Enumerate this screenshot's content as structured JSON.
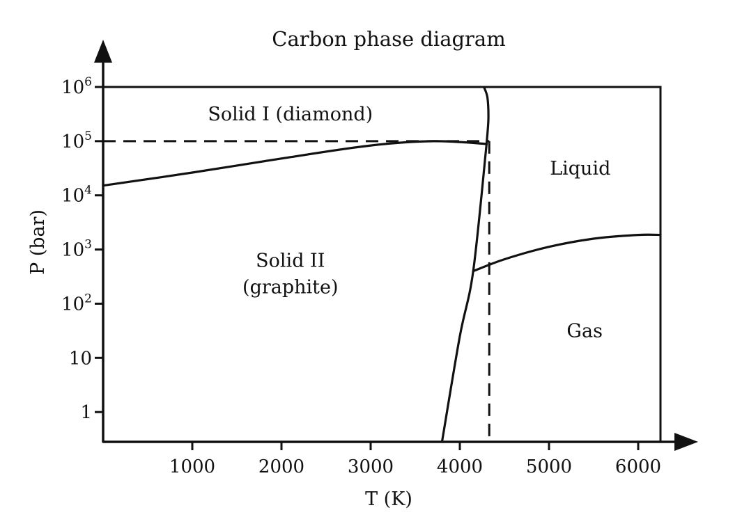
{
  "chart_data": {
    "type": "line",
    "title": "Carbon phase diagram",
    "xlabel": "T (K)",
    "ylabel": "P (bar)",
    "x_ticks": [
      1000,
      2000,
      3000,
      4000,
      5000,
      6000
    ],
    "y_ticks": [
      {
        "exp": 0,
        "base": "1",
        "sup": ""
      },
      {
        "exp": 1,
        "base": "10",
        "sup": ""
      },
      {
        "exp": 2,
        "base": "10",
        "sup": "2"
      },
      {
        "exp": 3,
        "base": "10",
        "sup": "3"
      },
      {
        "exp": 4,
        "base": "10",
        "sup": "4"
      },
      {
        "exp": 5,
        "base": "10",
        "sup": "5"
      },
      {
        "exp": 6,
        "base": "10",
        "sup": "6"
      }
    ],
    "xlim": [
      0,
      6250
    ],
    "ylim_log10": [
      -0.55,
      6
    ],
    "y_scale": "log",
    "grid": false,
    "regions": [
      {
        "id": "diamond",
        "lines": [
          "Solid I (diamond)"
        ],
        "x": 2100,
        "log_p": 5.5
      },
      {
        "id": "graphite",
        "lines": [
          "Solid II",
          "(graphite)"
        ],
        "x": 2100,
        "log_p": 2.55
      },
      {
        "id": "liquid",
        "lines": [
          "Liquid"
        ],
        "x": 5350,
        "log_p": 4.5
      },
      {
        "id": "gas",
        "lines": [
          "Gas"
        ],
        "x": 5400,
        "log_p": 1.5
      }
    ],
    "boundaries": [
      {
        "id": "graphite-diamond",
        "points": [
          [
            0,
            4.18
          ],
          [
            1000,
            4.42
          ],
          [
            2000,
            4.68
          ],
          [
            3000,
            4.92
          ],
          [
            3700,
            5.0
          ],
          [
            4300,
            4.95
          ]
        ]
      },
      {
        "id": "diamond-liquid",
        "points": [
          [
            4300,
            4.95
          ],
          [
            4320,
            5.4
          ],
          [
            4310,
            5.8
          ],
          [
            4270,
            6.0
          ]
        ]
      },
      {
        "id": "graphite-melting",
        "points": [
          [
            3800,
            -0.55
          ],
          [
            4000,
            1.4
          ],
          [
            4150,
            2.6
          ],
          [
            4300,
            4.95
          ]
        ]
      },
      {
        "id": "liquid-gas",
        "points": [
          [
            4150,
            2.6
          ],
          [
            4500,
            2.82
          ],
          [
            5000,
            3.05
          ],
          [
            5500,
            3.2
          ],
          [
            6000,
            3.27
          ],
          [
            6250,
            3.27
          ]
        ]
      }
    ],
    "reference_lines": [
      {
        "id": "p-reference",
        "from": [
          0,
          5
        ],
        "to": [
          4330,
          5
        ]
      },
      {
        "id": "t-reference",
        "from": [
          4330,
          5
        ],
        "to": [
          4330,
          -0.55
        ]
      }
    ]
  }
}
